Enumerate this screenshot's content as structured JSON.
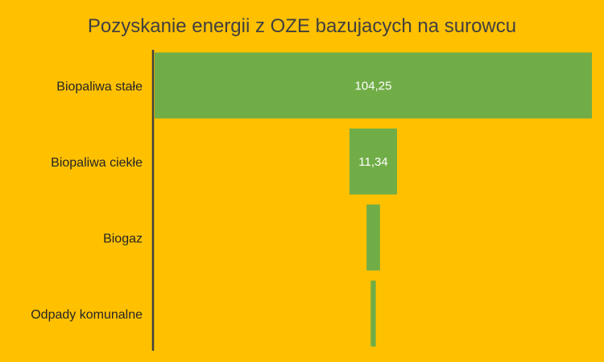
{
  "chart_data": {
    "type": "bar",
    "orientation": "horizontal",
    "layout": "funnel",
    "title": "Pozyskanie energii z OZE bazujacych na surowcu",
    "categories": [
      "Biopaliwa stałe",
      "Biopaliwa ciekłe",
      "Biogaz",
      "Odpady komunalne"
    ],
    "values": [
      104.25,
      11.34,
      3.2,
      1.2
    ],
    "data_labels": [
      "104,25",
      "11,34",
      "",
      ""
    ],
    "xlabel": "",
    "ylabel": "",
    "grid": false,
    "legend": "none",
    "colors": {
      "background": "#FFC000",
      "bar": "#70AD47",
      "axis": "#404040",
      "title": "#404040",
      "category_text": "#262626",
      "data_label_text": "#FFFFFF"
    }
  }
}
